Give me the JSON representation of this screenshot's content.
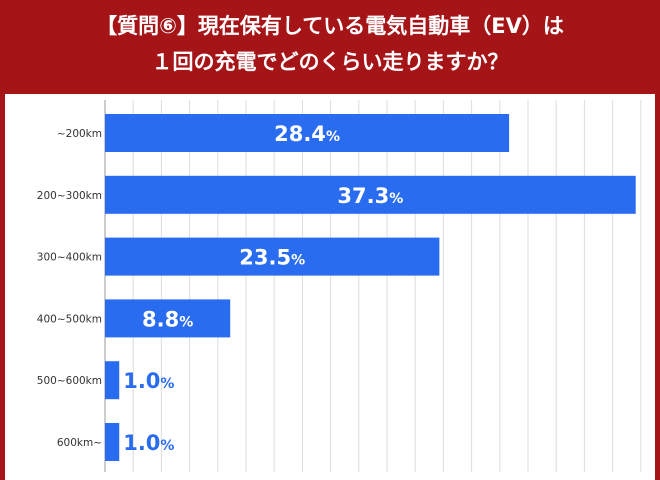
{
  "title_lines": [
    "【質問⑥】現在保有している電気自動車（EV）は",
    "１回の充電でどのくらい走りますか？"
  ],
  "colors": {
    "background": "#a51417",
    "bar": "#2a6cf0",
    "grid": "#dddddd",
    "label_inside": "#ffffff",
    "label_outside": "#2a6cf0"
  },
  "chart_data": {
    "type": "bar",
    "orientation": "horizontal",
    "categories": [
      "~200km",
      "200~300km",
      "300~400km",
      "400~500km",
      "500~600km",
      "600km~"
    ],
    "values": [
      28.4,
      37.3,
      23.5,
      8.8,
      1.0,
      1.0
    ],
    "value_labels": [
      "28.4",
      "37.3",
      "23.5",
      "8.8",
      "1.0",
      "1.0"
    ],
    "unit": "%",
    "xlim": [
      0,
      37.6
    ],
    "grid": true
  }
}
